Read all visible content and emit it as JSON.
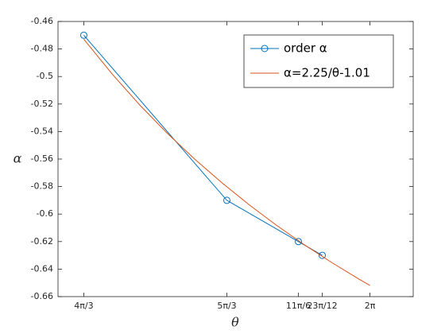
{
  "chart_data": {
    "type": "line",
    "xlabel": "θ",
    "ylabel": "α",
    "xlim": [
      4.0,
      6.6
    ],
    "ylim": [
      -0.66,
      -0.46
    ],
    "xticks": [
      {
        "value": 4.18879,
        "label": "4π/3"
      },
      {
        "value": 5.23599,
        "label": "5π/3"
      },
      {
        "value": 5.75959,
        "label": "11π/6"
      },
      {
        "value": 5.93412,
        "label": "23π/12"
      },
      {
        "value": 6.28319,
        "label": "2π"
      }
    ],
    "yticks": [
      -0.66,
      -0.64,
      -0.62,
      -0.6,
      -0.58,
      -0.56,
      -0.54,
      -0.52,
      -0.5,
      -0.48,
      -0.46
    ],
    "legend": "upper right",
    "series": [
      {
        "name": "order α",
        "color": "#0072BD",
        "marker": "circle",
        "x": [
          4.18879,
          5.23599,
          5.75959,
          5.93412
        ],
        "values": [
          -0.47,
          -0.59,
          -0.62,
          -0.63
        ]
      },
      {
        "name": "α=2.25/θ-1.01",
        "color": "#D95319",
        "marker": "none",
        "x": [
          4.18879,
          4.4,
          4.6,
          4.8,
          5.0,
          5.2,
          5.4,
          5.6,
          5.8,
          6.0,
          6.2,
          6.28319
        ],
        "values": [
          -0.4729,
          -0.4986,
          -0.5209,
          -0.5413,
          -0.56,
          -0.5773,
          -0.5933,
          -0.6082,
          -0.6221,
          -0.635,
          -0.6471,
          -0.6519
        ]
      }
    ]
  }
}
